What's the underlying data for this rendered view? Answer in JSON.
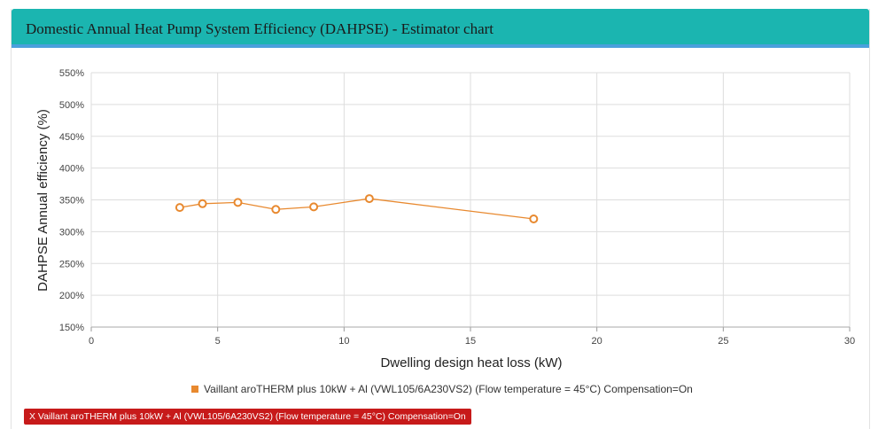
{
  "header": {
    "title": "Domestic Annual Heat Pump System Efficiency (DAHPSE) - Estimator chart"
  },
  "chart_data": {
    "type": "line",
    "title": "",
    "xlabel": "Dwelling design heat loss (kW)",
    "ylabel": "DAHPSE Annual efficiency (%)",
    "xlim": [
      0,
      30
    ],
    "ylim": [
      150,
      550
    ],
    "x_ticks": [
      "0",
      "5",
      "10",
      "15",
      "20",
      "25",
      "30"
    ],
    "y_ticks": [
      "150%",
      "200%",
      "250%",
      "300%",
      "350%",
      "400%",
      "450%",
      "500%",
      "550%"
    ],
    "grid": true,
    "legend_position": "bottom",
    "series": [
      {
        "name": "Vaillant aroTHERM plus 10kW + Al (VWL105/6A230VS2) (Flow temperature = 45°C) Compensation=On",
        "color": "#e8892f",
        "x": [
          3.5,
          4.4,
          5.8,
          7.3,
          8.8,
          11.0,
          17.5
        ],
        "y": [
          338,
          344,
          346,
          335,
          339,
          352,
          320
        ]
      }
    ]
  },
  "legend": {
    "label": "Vaillant aroTHERM plus 10kW + Al (VWL105/6A230VS2) (Flow temperature = 45°C) Compensation=On",
    "color": "#e8892f"
  },
  "remove_button": {
    "label": "X Vaillant aroTHERM plus 10kW + Al (VWL105/6A230VS2) (Flow temperature = 45°C) Compensation=On"
  }
}
